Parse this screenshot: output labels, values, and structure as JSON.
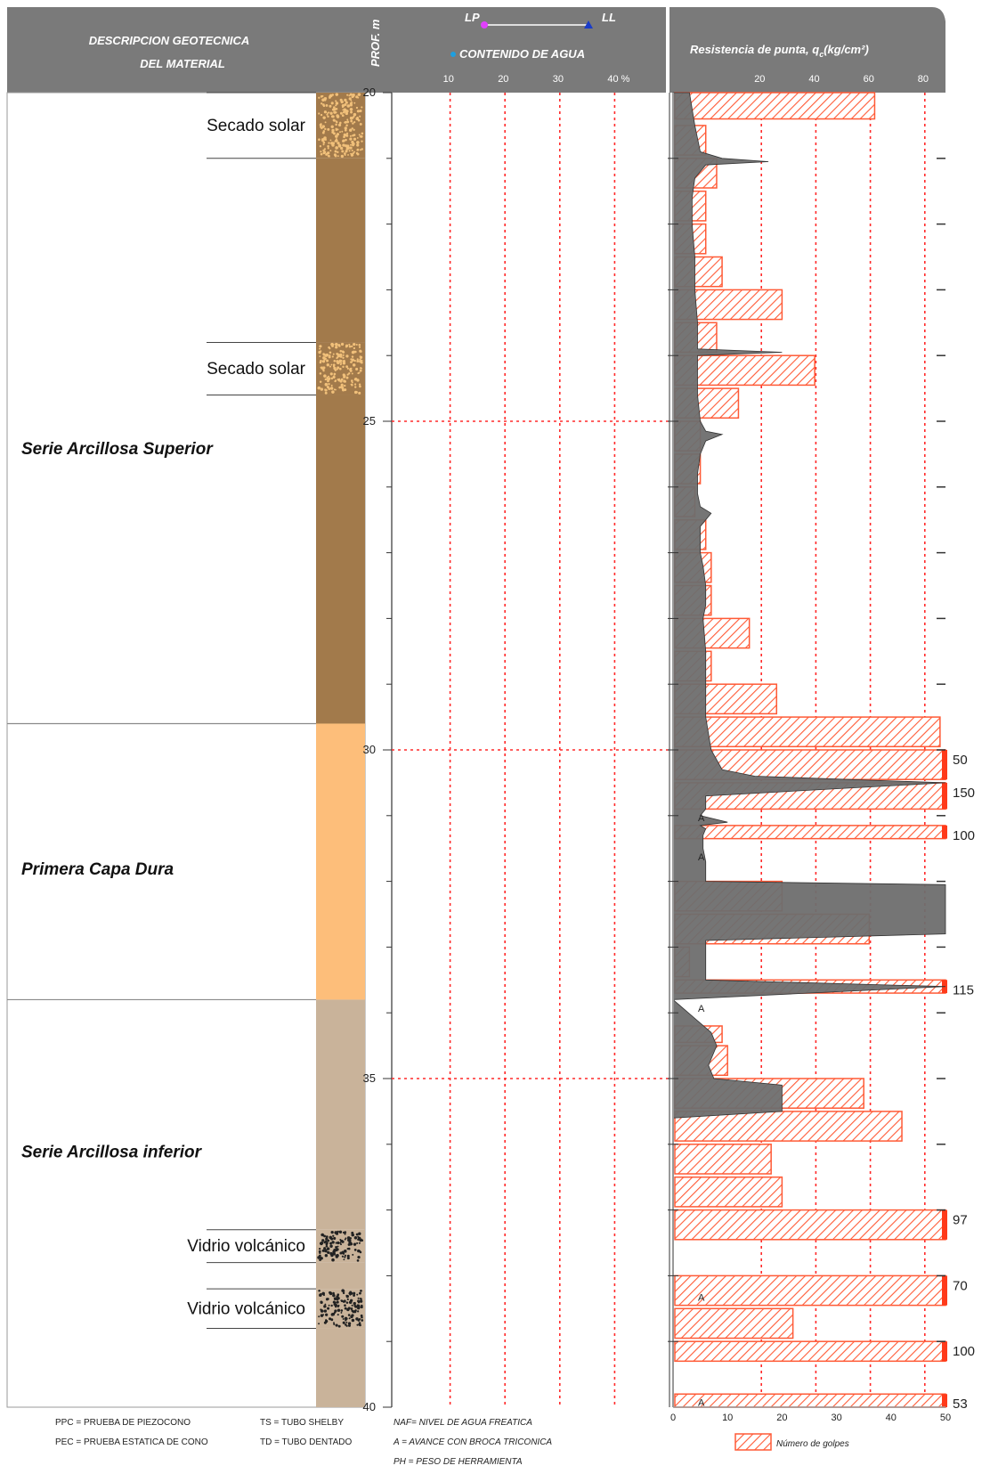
{
  "header": {
    "description_title_1": "DESCRIPCION GEOTECNICA",
    "description_title_2": "DEL MATERIAL",
    "depth_title": "PROF. m",
    "lp_label": "LP",
    "ll_label": "LL",
    "water_content_label": "CONTENIDO DE AGUA",
    "water_ticks": [
      "10",
      "20",
      "30",
      "40 %"
    ],
    "resistance_title": "Resistencia de punta, q",
    "resistance_subscript": "c",
    "resistance_units": "(kg/cm²)",
    "resistance_ticks": [
      "20",
      "40",
      "60",
      "80"
    ]
  },
  "colors": {
    "header_bg": "#7a7a7a",
    "arcillosa": "#a27a4b",
    "secado": "#a27a4b",
    "capa_dura": "#fdbe7a",
    "arcillosa_inferior": "#c9b39a",
    "profile": "#6e6e6e",
    "blows": "#ff5a36",
    "red_grid": "#ff2a2a",
    "lp_color": "#e040fb",
    "ll_color": "#1a3cc8",
    "water_color": "#1e9fe0"
  },
  "layers": [
    {
      "name": "Secado solar",
      "top": 20.0,
      "bottom": 21.0,
      "color": "#a27a4b",
      "pattern": "speckle-light"
    },
    {
      "name": "",
      "top": 21.0,
      "bottom": 23.8,
      "color": "#a27a4b",
      "pattern": "none"
    },
    {
      "name": "Secado solar",
      "top": 23.8,
      "bottom": 24.6,
      "color": "#a27a4b",
      "pattern": "speckle-light"
    },
    {
      "name": "",
      "top": 24.6,
      "bottom": 29.6,
      "color": "#a27a4b",
      "pattern": "none"
    },
    {
      "name": "",
      "top": 29.6,
      "bottom": 33.8,
      "color": "#fdbe7a",
      "pattern": "none"
    },
    {
      "name": "",
      "top": 33.8,
      "bottom": 37.3,
      "color": "#c9b39a",
      "pattern": "none"
    },
    {
      "name": "Vidrio volcánico",
      "top": 37.3,
      "bottom": 37.8,
      "color": "#c9b39a",
      "pattern": "speckle-dark"
    },
    {
      "name": "",
      "top": 37.8,
      "bottom": 38.2,
      "color": "#c9b39a",
      "pattern": "none"
    },
    {
      "name": "Vidrio volcánico",
      "top": 38.2,
      "bottom": 38.8,
      "color": "#c9b39a",
      "pattern": "speckle-dark"
    },
    {
      "name": "",
      "top": 38.8,
      "bottom": 40.0,
      "color": "#c9b39a",
      "pattern": "none"
    }
  ],
  "unit_labels": [
    {
      "text": "Serie Arcillosa Superior",
      "depth": 25.5
    },
    {
      "text": "Primera Capa Dura",
      "depth": 31.9
    },
    {
      "text": "Serie Arcillosa inferior",
      "depth": 36.2
    }
  ],
  "depth_axis": {
    "ticks": [
      "20",
      "25",
      "30",
      "35",
      "40"
    ],
    "min": 20,
    "max": 40
  },
  "chart_data": {
    "type": "area",
    "ylabel": "PROF. m",
    "xlabel": "Resistencia de punta, qc (kg/cm²)",
    "ylim": [
      20,
      40
    ],
    "resistance_xlim": [
      0,
      100
    ],
    "blows_xlim": [
      0,
      50
    ],
    "blows_ticks": [
      "0",
      "10",
      "20",
      "30",
      "40",
      "50"
    ],
    "cone_resistance_profile": {
      "depth": [
        20.0,
        20.5,
        20.9,
        21.0,
        21.05,
        21.1,
        21.2,
        21.3,
        21.6,
        22.0,
        22.5,
        23.0,
        23.5,
        23.9,
        23.95,
        24.0,
        24.1,
        24.3,
        24.6,
        25.0,
        25.15,
        25.2,
        25.3,
        25.5,
        25.8,
        26.1,
        26.3,
        26.4,
        26.6,
        26.8,
        27.0,
        27.2,
        27.5,
        27.8,
        28.0,
        28.5,
        29.0,
        29.5,
        30.0,
        30.3,
        30.4,
        30.5,
        30.7,
        30.9,
        31.0,
        31.1,
        31.15,
        31.2,
        31.3,
        31.5,
        31.7,
        32.0,
        32.05,
        32.2,
        32.8,
        32.9,
        33.2,
        33.5,
        33.6,
        33.8,
        34.3,
        34.5,
        34.8,
        35.0,
        35.1,
        35.3,
        35.5,
        35.6
      ],
      "qc": [
        6,
        8,
        10,
        18,
        35,
        12,
        10,
        8,
        7,
        7,
        8,
        8,
        9,
        9,
        40,
        9,
        9,
        9,
        9,
        10,
        12,
        18,
        12,
        10,
        9,
        9,
        10,
        14,
        10,
        10,
        10,
        11,
        12,
        12,
        11,
        12,
        12,
        12,
        14,
        18,
        30,
        150,
        12,
        12,
        10,
        20,
        10,
        12,
        11,
        11,
        12,
        12,
        120,
        110,
        100,
        12,
        12,
        12,
        120,
        0,
        14,
        16,
        13,
        15,
        40,
        40,
        40,
        0
      ],
      "advance_markers": [
        31.0,
        31.6,
        33.9,
        38.3,
        39.9
      ],
      "advance_label": "A"
    },
    "blow_counts": {
      "intervals": [
        {
          "top": 20.0,
          "bottom": 20.4,
          "blows": 37
        },
        {
          "top": 20.5,
          "bottom": 20.95,
          "blows": 6
        },
        {
          "top": 21.0,
          "bottom": 21.45,
          "blows": 8
        },
        {
          "top": 21.5,
          "bottom": 21.95,
          "blows": 6
        },
        {
          "top": 22.0,
          "bottom": 22.45,
          "blows": 6
        },
        {
          "top": 22.5,
          "bottom": 22.95,
          "blows": 9
        },
        {
          "top": 23.0,
          "bottom": 23.45,
          "blows": 20
        },
        {
          "top": 23.5,
          "bottom": 23.95,
          "blows": 8
        },
        {
          "top": 24.0,
          "bottom": 24.45,
          "blows": 26
        },
        {
          "top": 24.5,
          "bottom": 24.95,
          "blows": 12
        },
        {
          "top": 25.0,
          "bottom": 25.45,
          "blows": 5
        },
        {
          "top": 25.5,
          "bottom": 25.95,
          "blows": 5
        },
        {
          "top": 26.0,
          "bottom": 26.45,
          "blows": 4
        },
        {
          "top": 26.5,
          "bottom": 26.95,
          "blows": 6
        },
        {
          "top": 27.0,
          "bottom": 27.45,
          "blows": 7
        },
        {
          "top": 27.5,
          "bottom": 27.95,
          "blows": 7
        },
        {
          "top": 28.0,
          "bottom": 28.45,
          "blows": 14
        },
        {
          "top": 28.5,
          "bottom": 28.95,
          "blows": 7
        },
        {
          "top": 29.0,
          "bottom": 29.45,
          "blows": 19
        },
        {
          "top": 29.5,
          "bottom": 29.95,
          "blows": 49
        },
        {
          "top": 30.0,
          "bottom": 30.45,
          "blows": 50,
          "label": "50"
        },
        {
          "top": 30.5,
          "bottom": 30.9,
          "blows": 50,
          "label": "150"
        },
        {
          "top": 31.15,
          "bottom": 31.35,
          "blows": 50,
          "label": "100"
        },
        {
          "top": 32.0,
          "bottom": 32.45,
          "blows": 20
        },
        {
          "top": 32.5,
          "bottom": 32.95,
          "blows": 36
        },
        {
          "top": 33.0,
          "bottom": 33.45,
          "blows": 3
        },
        {
          "top": 33.5,
          "bottom": 33.7,
          "blows": 50,
          "label": "115"
        },
        {
          "top": 34.2,
          "bottom": 34.45,
          "blows": 9
        },
        {
          "top": 34.5,
          "bottom": 34.95,
          "blows": 10
        },
        {
          "top": 35.0,
          "bottom": 35.45,
          "blows": 35
        },
        {
          "top": 35.5,
          "bottom": 35.95,
          "blows": 42
        },
        {
          "top": 36.0,
          "bottom": 36.45,
          "blows": 18
        },
        {
          "top": 36.5,
          "bottom": 36.95,
          "blows": 20
        },
        {
          "top": 37.0,
          "bottom": 37.45,
          "blows": 50,
          "label": "97"
        },
        {
          "top": 38.0,
          "bottom": 38.45,
          "blows": 50,
          "label": "70"
        },
        {
          "top": 38.5,
          "bottom": 38.95,
          "blows": 22
        },
        {
          "top": 39.0,
          "bottom": 39.3,
          "blows": 50,
          "label": "100"
        },
        {
          "top": 39.8,
          "bottom": 40.0,
          "blows": 50,
          "label": "53"
        }
      ],
      "legend": "Número de golpes"
    }
  },
  "legend": {
    "left_col": [
      "PPC = PRUEBA DE PIEZOCONO",
      "PEC = PRUEBA ESTATICA DE CONO"
    ],
    "mid_col": [
      "TS = TUBO SHELBY",
      "TD = TUBO DENTADO"
    ],
    "right_col": [
      "NAF= NIVEL DE AGUA FREATICA",
      "A = AVANCE CON BROCA TRICONICA",
      "PH = PESO DE HERRAMIENTA"
    ]
  }
}
